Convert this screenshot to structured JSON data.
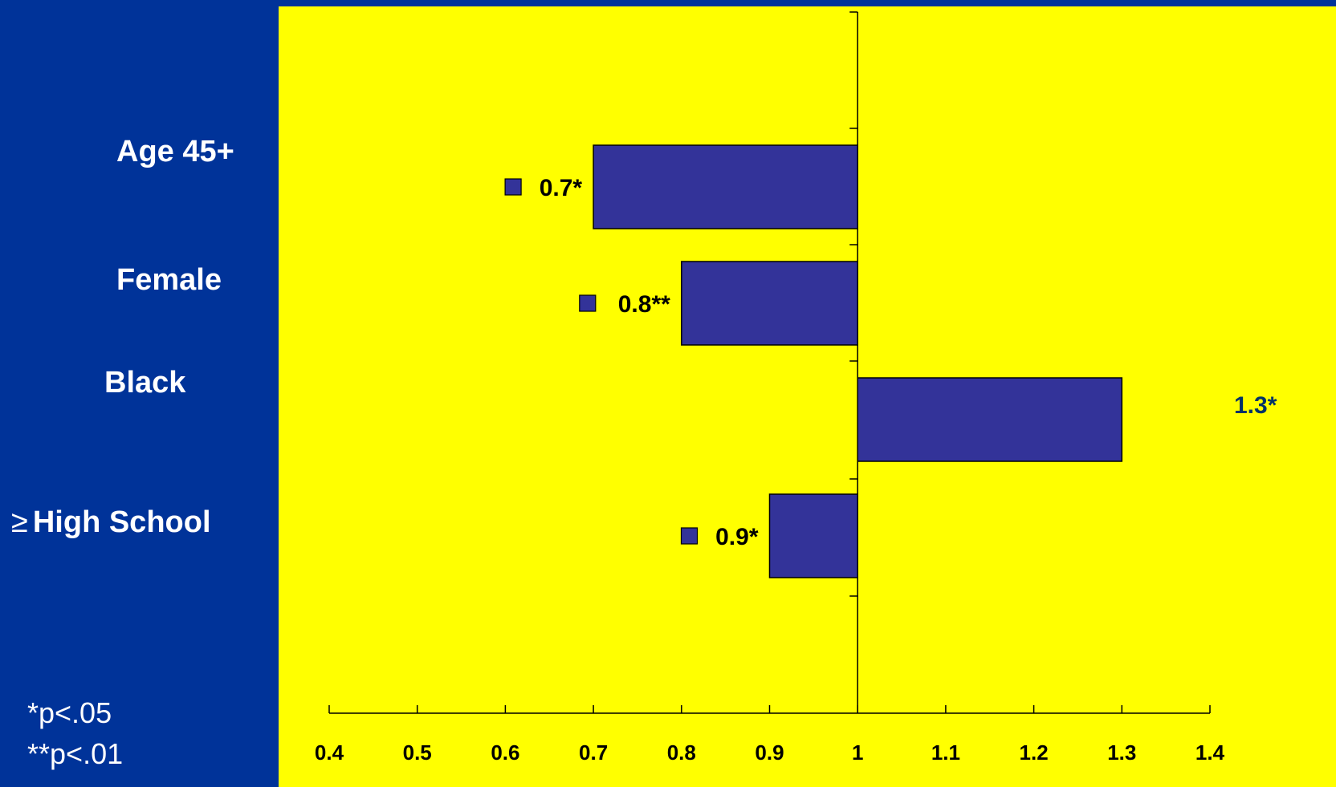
{
  "chart_data": {
    "type": "bar",
    "orientation": "horizontal",
    "baseline": 1,
    "categories": [
      "Age 45+",
      "Female",
      "Black",
      "High School"
    ],
    "category_prefixes": [
      "",
      "",
      "",
      "≥"
    ],
    "values": [
      0.7,
      0.8,
      1.3,
      0.9
    ],
    "data_labels": [
      "0.7*",
      "0.8**",
      "1.3*",
      "0.9*"
    ],
    "xlim": [
      0.4,
      1.4
    ],
    "xticks": [
      "0.4",
      "0.5",
      "0.6",
      "0.7",
      "0.8",
      "0.9",
      "1",
      "1.1",
      "1.2",
      "1.3",
      "1.4"
    ],
    "title": "",
    "xlabel": "",
    "ylabel": "",
    "grid": false,
    "legend": "none"
  },
  "footnotes": [
    "*p<.05",
    "**p<.01"
  ],
  "colors": {
    "background": "#003399",
    "plot_area": "#ffff00",
    "bar_fill": "#333399",
    "bar_stroke": "#000000",
    "label_text": "#ffffff",
    "data_label_text": "#000000",
    "outlier_label_text": "#003366"
  }
}
